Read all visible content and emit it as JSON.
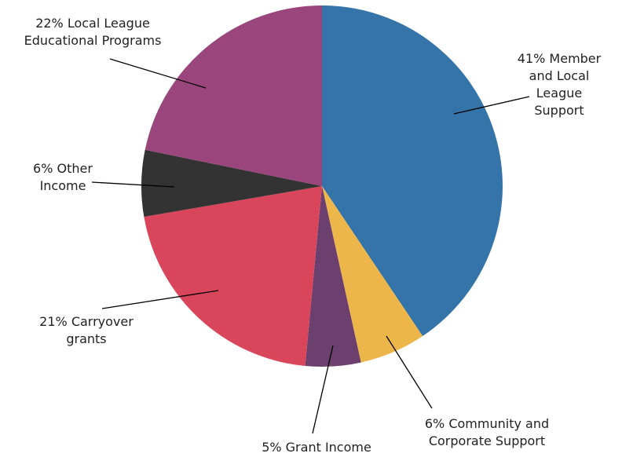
{
  "chart_data": {
    "type": "pie",
    "title": "",
    "slices": [
      {
        "label_lines": [
          "41% Member",
          "and Local",
          "League",
          "Support"
        ],
        "value": 41,
        "color": "#3474A8"
      },
      {
        "label_lines": [
          "6% Community and",
          "Corporate Support"
        ],
        "value": 6,
        "color": "#EDB64A"
      },
      {
        "label_lines": [
          "5% Grant Income"
        ],
        "value": 5,
        "color": "#6B3F6E"
      },
      {
        "label_lines": [
          "21% Carryover",
          "grants"
        ],
        "value": 21,
        "color": "#D9465B"
      },
      {
        "label_lines": [
          "6% Other",
          "Income"
        ],
        "value": 6,
        "color": "#333333"
      },
      {
        "label_lines": [
          "22% Local League",
          "Educational Programs"
        ],
        "value": 22,
        "color": "#9A467D"
      }
    ]
  }
}
